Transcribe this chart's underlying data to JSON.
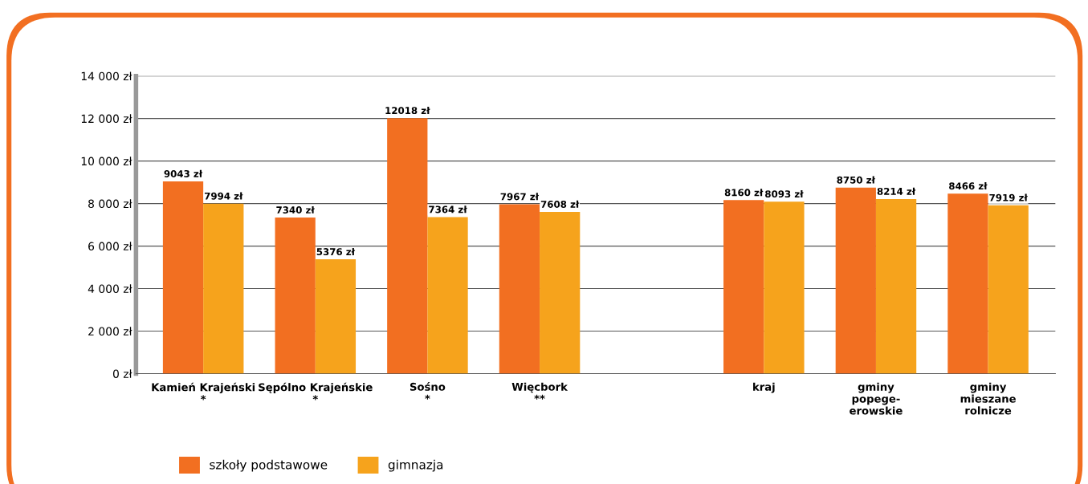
{
  "chart_data": {
    "type": "bar",
    "categories": [
      "Kamień Krajeński\n*",
      "Sępólno Krajeńskie\n*",
      "Sośno\n*",
      "Więcbork\n**",
      null,
      "kraj",
      "gminy\npopege-\nerowskie",
      "gminy\nmieszane\nrolnicze"
    ],
    "series": [
      {
        "name": "szkoły podstawowe",
        "color": "#f26f21",
        "values": [
          9043,
          7340,
          12018,
          7967,
          null,
          8160,
          8750,
          8466
        ],
        "value_labels": [
          "9043 zł",
          "7340 zł",
          "12018 zł",
          "7967 zł",
          null,
          "8160 zł",
          "8750 zł",
          "8466 zł"
        ]
      },
      {
        "name": "gimnazja",
        "color": "#f6a31c",
        "values": [
          7994,
          5376,
          7364,
          7608,
          null,
          8093,
          8214,
          7919
        ],
        "value_labels": [
          "7994 zł",
          "5376 zł",
          "7364 zł",
          "7608 zł",
          null,
          "8093 zł",
          "8214 zł",
          "7919 zł"
        ]
      }
    ],
    "ylim": [
      0,
      14000
    ],
    "yticks": [
      {
        "value": 0,
        "label": "0 zł"
      },
      {
        "value": 2000,
        "label": "2 000 zł"
      },
      {
        "value": 4000,
        "label": "4 000 zł"
      },
      {
        "value": 6000,
        "label": "6 000 zł"
      },
      {
        "value": 8000,
        "label": "8 000 zł"
      },
      {
        "value": 10000,
        "label": "10 000 zł"
      },
      {
        "value": 12000,
        "label": "12 000 zł"
      },
      {
        "value": 14000,
        "label": "14 000 zł"
      }
    ],
    "grid": "y",
    "legend": "bottom left"
  }
}
